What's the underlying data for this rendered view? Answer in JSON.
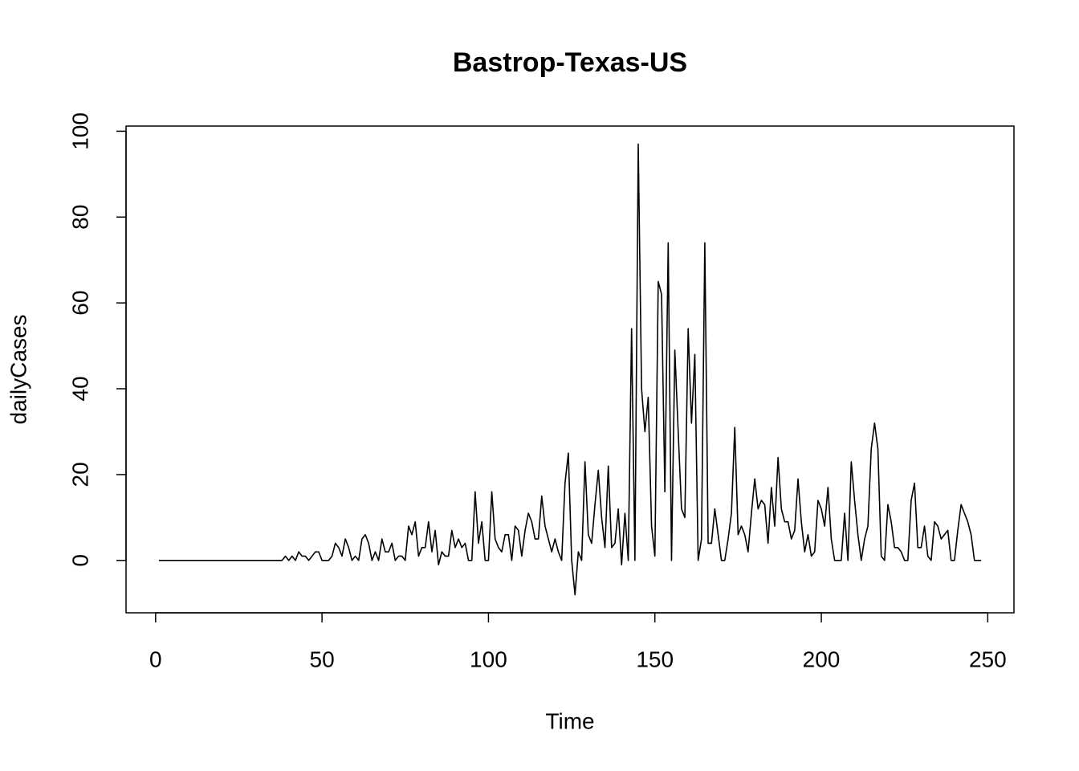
{
  "chart_data": {
    "type": "line",
    "title": "Bastrop-Texas-US",
    "xlabel": "Time",
    "ylabel": "dailyCases",
    "x": [
      1,
      2,
      3,
      4,
      5,
      6,
      7,
      8,
      9,
      10,
      11,
      12,
      13,
      14,
      15,
      16,
      17,
      18,
      19,
      20,
      21,
      22,
      23,
      24,
      25,
      26,
      27,
      28,
      29,
      30,
      31,
      32,
      33,
      34,
      35,
      36,
      37,
      38,
      39,
      40,
      41,
      42,
      43,
      44,
      45,
      46,
      47,
      48,
      49,
      50,
      51,
      52,
      53,
      54,
      55,
      56,
      57,
      58,
      59,
      60,
      61,
      62,
      63,
      64,
      65,
      66,
      67,
      68,
      69,
      70,
      71,
      72,
      73,
      74,
      75,
      76,
      77,
      78,
      79,
      80,
      81,
      82,
      83,
      84,
      85,
      86,
      87,
      88,
      89,
      90,
      91,
      92,
      93,
      94,
      95,
      96,
      97,
      98,
      99,
      100,
      101,
      102,
      103,
      104,
      105,
      106,
      107,
      108,
      109,
      110,
      111,
      112,
      113,
      114,
      115,
      116,
      117,
      118,
      119,
      120,
      121,
      122,
      123,
      124,
      125,
      126,
      127,
      128,
      129,
      130,
      131,
      132,
      133,
      134,
      135,
      136,
      137,
      138,
      139,
      140,
      141,
      142,
      143,
      144,
      145,
      146,
      147,
      148,
      149,
      150,
      151,
      152,
      153,
      154,
      155,
      156,
      157,
      158,
      159,
      160,
      161,
      162,
      163,
      164,
      165,
      166,
      167,
      168,
      169,
      170,
      171,
      172,
      173,
      174,
      175,
      176,
      177,
      178,
      179,
      180,
      181,
      182,
      183,
      184,
      185,
      186,
      187,
      188,
      189,
      190,
      191,
      192,
      193,
      194,
      195,
      196,
      197,
      198,
      199,
      200,
      201,
      202,
      203,
      204,
      205,
      206,
      207,
      208,
      209,
      210,
      211,
      212,
      213,
      214,
      215,
      216,
      217,
      218,
      219,
      220,
      221,
      222,
      223,
      224,
      225,
      226,
      227,
      228,
      229,
      230,
      231,
      232,
      233,
      234,
      235,
      236,
      237,
      238,
      239,
      240,
      241,
      242,
      243,
      244,
      245,
      246,
      247,
      248
    ],
    "values": [
      0,
      0,
      0,
      0,
      0,
      0,
      0,
      0,
      0,
      0,
      0,
      0,
      0,
      0,
      0,
      0,
      0,
      0,
      0,
      0,
      0,
      0,
      0,
      0,
      0,
      0,
      0,
      0,
      0,
      0,
      0,
      0,
      0,
      0,
      0,
      0,
      0,
      0,
      1,
      0,
      1,
      0,
      2,
      1,
      1,
      0,
      1,
      2,
      2,
      0,
      0,
      0,
      1,
      4,
      3,
      1,
      5,
      3,
      0,
      1,
      0,
      5,
      6,
      4,
      0,
      2,
      0,
      5,
      2,
      2,
      4,
      0,
      1,
      1,
      0,
      8,
      6,
      9,
      1,
      3,
      3,
      9,
      2,
      7,
      -1,
      2,
      1,
      1,
      7,
      3,
      5,
      3,
      4,
      0,
      0,
      16,
      4,
      9,
      0,
      0,
      16,
      5,
      3,
      2,
      6,
      6,
      0,
      8,
      7,
      1,
      7,
      11,
      9,
      5,
      5,
      15,
      8,
      5,
      2,
      5,
      2,
      0,
      18,
      25,
      0,
      -8,
      2,
      0,
      23,
      6,
      4,
      13,
      21,
      10,
      3,
      22,
      3,
      4,
      12,
      -1,
      11,
      0,
      54,
      0,
      97,
      40,
      30,
      38,
      8,
      1,
      65,
      62,
      16,
      74,
      0,
      49,
      30,
      12,
      10,
      54,
      32,
      48,
      0,
      5,
      74,
      4,
      4,
      12,
      6,
      0,
      0,
      5,
      11,
      31,
      6,
      8,
      6,
      2,
      11,
      19,
      12,
      14,
      13,
      4,
      17,
      8,
      24,
      12,
      9,
      9,
      5,
      7,
      19,
      9,
      2,
      6,
      1,
      2,
      14,
      12,
      8,
      17,
      5,
      0,
      0,
      0,
      11,
      0,
      23,
      14,
      6,
      0,
      5,
      8,
      26,
      32,
      26,
      1,
      0,
      13,
      9,
      3,
      3,
      2,
      0,
      0,
      14,
      18,
      3,
      3,
      8,
      1,
      0,
      9,
      8,
      5,
      6,
      7,
      0,
      0,
      7,
      13,
      11,
      9,
      6,
      0,
      0,
      0
    ],
    "color": "#000000",
    "xlim": [
      -8.88,
      257.88
    ],
    "xticks": [
      0,
      50,
      100,
      150,
      200,
      250
    ],
    "ylim": [
      -12.2,
      101.2
    ],
    "yticks": [
      0,
      20,
      40,
      60,
      80,
      100
    ]
  }
}
